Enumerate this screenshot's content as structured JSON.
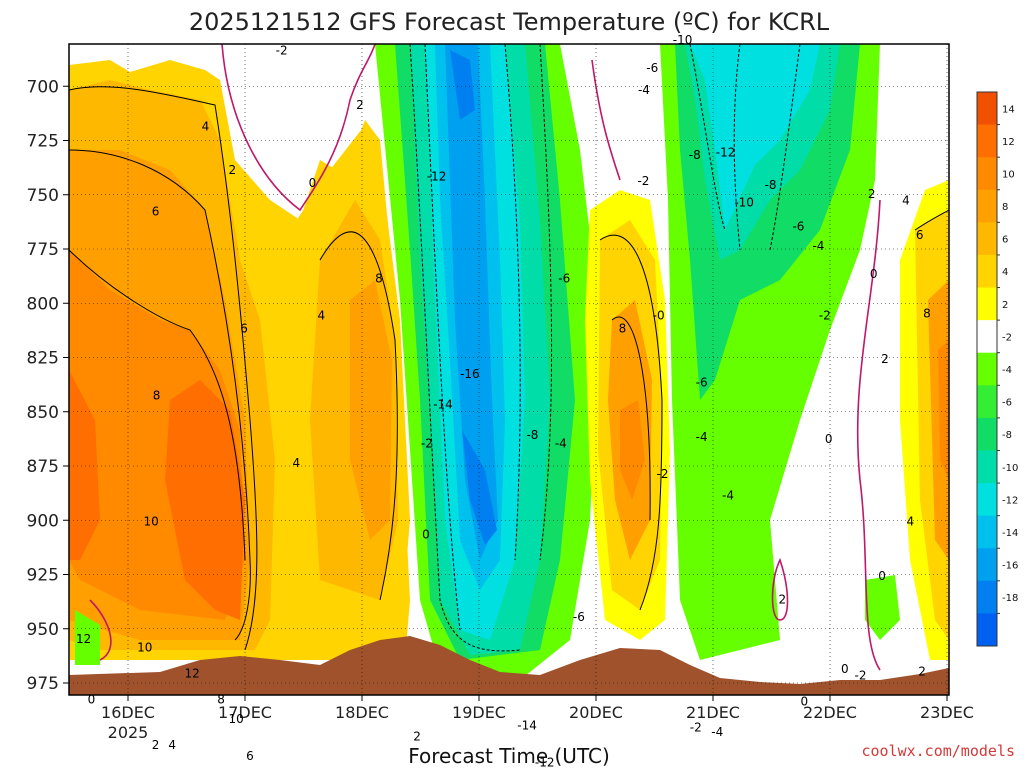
{
  "chart_data": {
    "type": "heatmap",
    "title": "2025121512 GFS Forecast Temperature (ºC) for KCRL",
    "xlabel": "Forecast Time (UTC)",
    "ylabel": "",
    "credit": "coolwx.com/models",
    "year_label": "2025",
    "x_ticks": [
      "16DEC",
      "17DEC",
      "18DEC",
      "19DEC",
      "20DEC",
      "21DEC",
      "22DEC",
      "23DEC"
    ],
    "y_ticks": [
      700,
      725,
      750,
      775,
      800,
      825,
      850,
      875,
      900,
      925,
      950,
      975
    ],
    "ylim": [
      975,
      675
    ],
    "xlim": [
      0,
      180
    ],
    "colorbar": {
      "tick_labels": [
        "14",
        "12",
        "10",
        "8",
        "6",
        "4",
        "2",
        "-2",
        "-4",
        "-6",
        "-8",
        "-10",
        "-12",
        "-14",
        "-16",
        "-18"
      ],
      "colors": [
        "#f05000",
        "#ff6e00",
        "#ff8a00",
        "#ffa000",
        "#ffb800",
        "#ffd400",
        "#ffff00",
        "#ffffff",
        "#66ff00",
        "#33ee33",
        "#11dd66",
        "#00dda8",
        "#00e0e0",
        "#00c0ee",
        "#00a0f0",
        "#0080f0",
        "#0060f0"
      ]
    },
    "series": [
      {
        "name": "16DEC 00Z",
        "x": 12,
        "values": [
          {
            "p": 700,
            "t": 3
          },
          {
            "p": 750,
            "t": 6
          },
          {
            "p": 800,
            "t": 8
          },
          {
            "p": 850,
            "t": 10
          },
          {
            "p": 900,
            "t": 12
          },
          {
            "p": 950,
            "t": 2
          }
        ]
      },
      {
        "name": "17DEC 00Z",
        "x": 36,
        "values": [
          {
            "p": 725,
            "t": 2
          },
          {
            "p": 800,
            "t": 6
          },
          {
            "p": 850,
            "t": 10
          },
          {
            "p": 900,
            "t": 12
          },
          {
            "p": 950,
            "t": 6
          }
        ]
      },
      {
        "name": "18DEC 00Z",
        "x": 60,
        "values": [
          {
            "p": 700,
            "t": 2
          },
          {
            "p": 790,
            "t": 8
          },
          {
            "p": 850,
            "t": 4
          },
          {
            "p": 950,
            "t": 2
          }
        ]
      },
      {
        "name": "19DEC 00Z",
        "x": 84,
        "values": [
          {
            "p": 750,
            "t": -12
          },
          {
            "p": 820,
            "t": -16
          },
          {
            "p": 880,
            "t": -14
          },
          {
            "p": 950,
            "t": -14
          }
        ]
      },
      {
        "name": "20DEC 00Z",
        "x": 108,
        "values": [
          {
            "p": 775,
            "t": -6
          },
          {
            "p": 810,
            "t": 8
          },
          {
            "p": 850,
            "t": 10
          },
          {
            "p": 950,
            "t": 2
          }
        ]
      },
      {
        "name": "21DEC 00Z",
        "x": 132,
        "values": [
          {
            "p": 700,
            "t": -10
          },
          {
            "p": 740,
            "t": -12
          },
          {
            "p": 850,
            "t": -4
          },
          {
            "p": 950,
            "t": -4
          }
        ]
      },
      {
        "name": "22DEC 00Z",
        "x": 156,
        "values": [
          {
            "p": 800,
            "t": -2
          },
          {
            "p": 875,
            "t": 0
          },
          {
            "p": 950,
            "t": 0
          }
        ]
      },
      {
        "name": "23DEC 00Z",
        "x": 178,
        "values": [
          {
            "p": 750,
            "t": 4
          },
          {
            "p": 800,
            "t": 8
          },
          {
            "p": 875,
            "t": 4
          }
        ]
      }
    ],
    "contour_labels": [
      {
        "text": "-2",
        "x": 43.5,
        "p": 685
      },
      {
        "text": "-10",
        "x": 125.5,
        "p": 680
      },
      {
        "text": "-6",
        "x": 119.3,
        "p": 693
      },
      {
        "text": "-4",
        "x": 117.6,
        "p": 703
      },
      {
        "text": "2",
        "x": 59.5,
        "p": 710
      },
      {
        "text": "4",
        "x": 27.9,
        "p": 720
      },
      {
        "text": "-12",
        "x": 134.3,
        "p": 732
      },
      {
        "text": "2",
        "x": 33.4,
        "p": 740
      },
      {
        "text": "-8",
        "x": 128.0,
        "p": 733
      },
      {
        "text": "-12",
        "x": 75.2,
        "p": 743
      },
      {
        "text": "0",
        "x": 49.8,
        "p": 746
      },
      {
        "text": "-2",
        "x": 117.5,
        "p": 745
      },
      {
        "text": "-8",
        "x": 143.5,
        "p": 747
      },
      {
        "text": "-10",
        "x": 138.1,
        "p": 755
      },
      {
        "text": "2",
        "x": 164.2,
        "p": 751
      },
      {
        "text": "4",
        "x": 171.2,
        "p": 754
      },
      {
        "text": "6",
        "x": 17.7,
        "p": 759
      },
      {
        "text": "-6",
        "x": 149.2,
        "p": 766
      },
      {
        "text": "-4",
        "x": 153.3,
        "p": 775
      },
      {
        "text": "6",
        "x": 174.0,
        "p": 770
      },
      {
        "text": "-6",
        "x": 101.3,
        "p": 790
      },
      {
        "text": "0",
        "x": 164.6,
        "p": 788
      },
      {
        "text": "8",
        "x": 63.4,
        "p": 790
      },
      {
        "text": "4",
        "x": 51.6,
        "p": 807
      },
      {
        "text": "-0",
        "x": 120.6,
        "p": 807
      },
      {
        "text": "-2",
        "x": 154.6,
        "p": 807
      },
      {
        "text": "8",
        "x": 175.5,
        "p": 806
      },
      {
        "text": "6",
        "x": 35.8,
        "p": 813
      },
      {
        "text": "8",
        "x": 113.2,
        "p": 813
      },
      {
        "text": "2",
        "x": 166.9,
        "p": 827
      },
      {
        "text": "-16",
        "x": 82.0,
        "p": 834
      },
      {
        "text": "-6",
        "x": 129.4,
        "p": 838
      },
      {
        "text": "8",
        "x": 17.9,
        "p": 844
      },
      {
        "text": "-14",
        "x": 76.5,
        "p": 848
      },
      {
        "text": "-8",
        "x": 94.8,
        "p": 862
      },
      {
        "text": "-4",
        "x": 100.6,
        "p": 866
      },
      {
        "text": "-4",
        "x": 129.4,
        "p": 863
      },
      {
        "text": "0",
        "x": 155.4,
        "p": 864
      },
      {
        "text": "-2",
        "x": 73.2,
        "p": 866
      },
      {
        "text": "4",
        "x": 46.5,
        "p": 875
      },
      {
        "text": "-2",
        "x": 121.4,
        "p": 880
      },
      {
        "text": "-4",
        "x": 134.8,
        "p": 890
      },
      {
        "text": "10",
        "x": 16.8,
        "p": 902
      },
      {
        "text": "4",
        "x": 172.1,
        "p": 902
      },
      {
        "text": "0",
        "x": 73.0,
        "p": 908
      },
      {
        "text": "0",
        "x": 166.3,
        "p": 927
      },
      {
        "text": "2",
        "x": 145.9,
        "p": 938
      },
      {
        "text": "-6",
        "x": 104.3,
        "p": 946
      },
      {
        "text": "12",
        "x": 3.0,
        "p": 956
      },
      {
        "text": "10",
        "x": 15.5,
        "p": 960
      },
      {
        "text": "12",
        "x": 25.2,
        "p": 972
      },
      {
        "text": "0",
        "x": 158.7,
        "p": 970
      },
      {
        "text": "-2",
        "x": 161.9,
        "p": 973
      },
      {
        "text": "2",
        "x": 174.5,
        "p": 971
      },
      {
        "text": "0",
        "x": 4.6,
        "p": 984
      },
      {
        "text": "8",
        "x": 31.1,
        "p": 984
      },
      {
        "text": "10",
        "x": 34.2,
        "p": 993
      },
      {
        "text": "0",
        "x": 150.4,
        "p": 985
      },
      {
        "text": "-14",
        "x": 93.7,
        "p": 996
      },
      {
        "text": "-2",
        "x": 128.2,
        "p": 997
      },
      {
        "text": "-4",
        "x": 132.6,
        "p": 999
      },
      {
        "text": "2",
        "x": 71.2,
        "p": 1001
      },
      {
        "text": "2",
        "x": 17.7,
        "p": 1005
      },
      {
        "text": "4",
        "x": 21.1,
        "p": 1005
      },
      {
        "text": "6",
        "x": 37.0,
        "p": 1010
      },
      {
        "text": "-12",
        "x": 97.3,
        "p": 1013
      }
    ],
    "grid": true
  }
}
